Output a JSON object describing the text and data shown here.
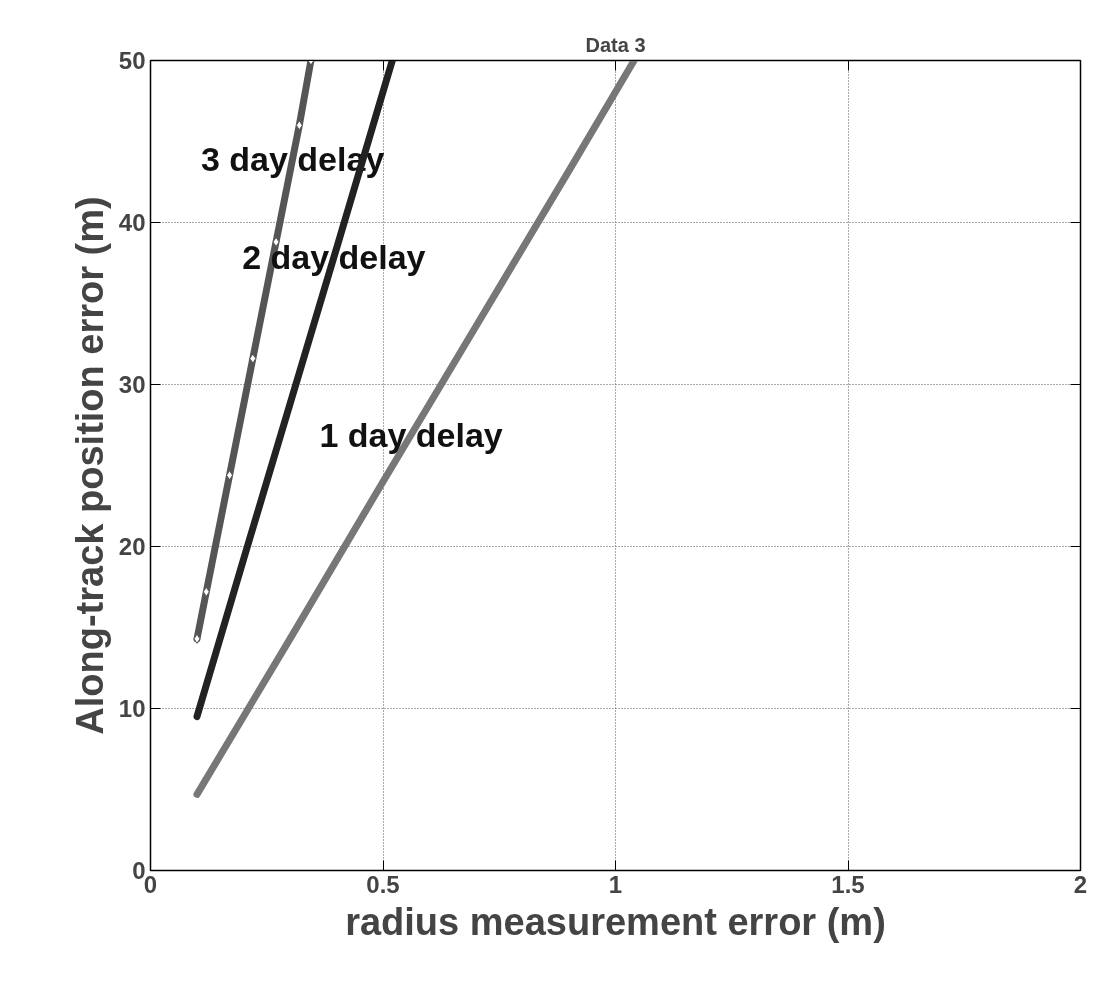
{
  "chart_data": {
    "type": "line",
    "title": "Data 3",
    "xlabel": "radius measurement error (m)",
    "ylabel": "Along-track position error (m)",
    "xlim": [
      0,
      2
    ],
    "ylim": [
      0,
      50
    ],
    "xticks": [
      0,
      0.5,
      1,
      1.5,
      2
    ],
    "yticks": [
      0,
      10,
      20,
      30,
      40,
      50
    ],
    "grid": true,
    "line_style": "solid",
    "series": [
      {
        "name": "3 day delay",
        "color": "#555555",
        "marker": "diamond",
        "x": [
          0.1,
          0.12,
          0.17,
          0.22,
          0.27,
          0.32,
          0.345
        ],
        "values": [
          14.3,
          17.2,
          24.4,
          31.6,
          38.8,
          46,
          50
        ]
      },
      {
        "name": "2 day delay",
        "color": "#222222",
        "x": [
          0.1,
          0.2,
          0.3,
          0.4,
          0.52
        ],
        "values": [
          9.5,
          19.2,
          28.8,
          38.4,
          50
        ]
      },
      {
        "name": "1 day delay",
        "color": "#777777",
        "x": [
          0.1,
          0.3,
          0.5,
          0.7,
          0.9,
          1.04
        ],
        "values": [
          4.7,
          14.3,
          24,
          33.6,
          43.2,
          50
        ]
      }
    ]
  }
}
